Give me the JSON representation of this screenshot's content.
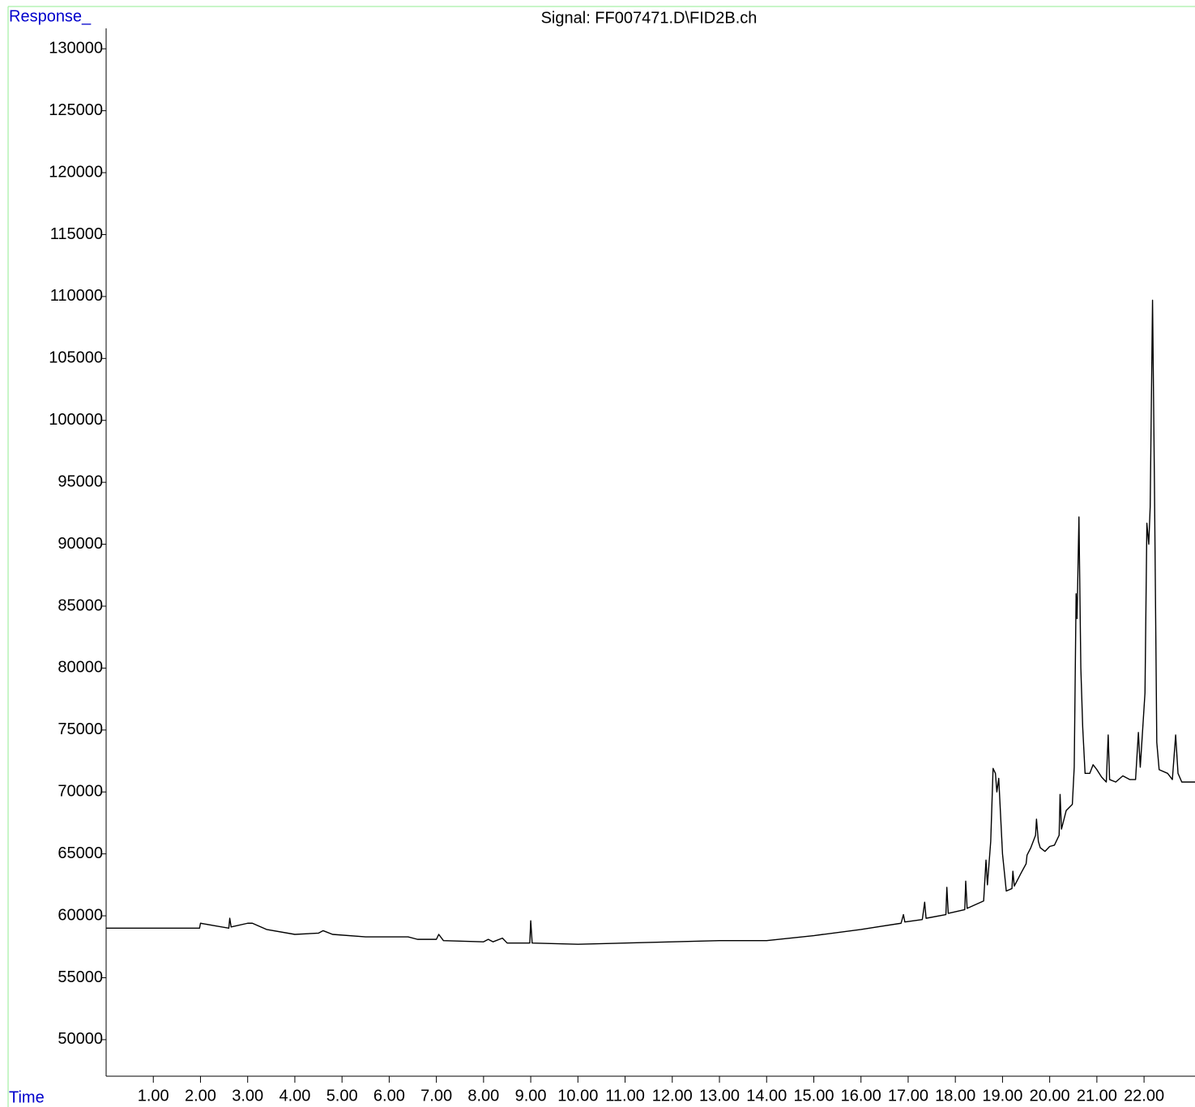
{
  "chart_data": {
    "type": "line",
    "title": "Signal: FF007471.D\\FID2B.ch",
    "y_label": "Response_",
    "x_label": "Time",
    "color": "#000000",
    "xlim": [
      0,
      23.08
    ],
    "ylim": [
      47050,
      131650
    ],
    "xticks": [
      {
        "value": 1,
        "label": "1.00"
      },
      {
        "value": 2,
        "label": "2.00"
      },
      {
        "value": 3,
        "label": "3.00"
      },
      {
        "value": 4,
        "label": "4.00"
      },
      {
        "value": 5,
        "label": "5.00"
      },
      {
        "value": 6,
        "label": "6.00"
      },
      {
        "value": 7,
        "label": "7.00"
      },
      {
        "value": 8,
        "label": "8.00"
      },
      {
        "value": 9,
        "label": "9.00"
      },
      {
        "value": 10,
        "label": "10.00"
      },
      {
        "value": 11,
        "label": "11.00"
      },
      {
        "value": 12,
        "label": "12.00"
      },
      {
        "value": 13,
        "label": "13.00"
      },
      {
        "value": 14,
        "label": "14.00"
      },
      {
        "value": 15,
        "label": "15.00"
      },
      {
        "value": 16,
        "label": "16.00"
      },
      {
        "value": 17,
        "label": "17.00"
      },
      {
        "value": 18,
        "label": "18.00"
      },
      {
        "value": 19,
        "label": "19.00"
      },
      {
        "value": 20,
        "label": "20.00"
      },
      {
        "value": 21,
        "label": "21.00"
      },
      {
        "value": 22,
        "label": "22.00"
      }
    ],
    "yticks": [
      50000,
      55000,
      60000,
      65000,
      70000,
      75000,
      80000,
      85000,
      90000,
      95000,
      100000,
      105000,
      110000,
      115000,
      120000,
      125000,
      130000
    ],
    "x": [
      0,
      1.98,
      2.0,
      2.3,
      2.6,
      2.62,
      2.65,
      3.0,
      3.1,
      3.4,
      4.0,
      4.5,
      4.6,
      4.8,
      5.5,
      6.0,
      6.4,
      6.6,
      7.0,
      7.05,
      7.15,
      8.0,
      8.1,
      8.2,
      8.4,
      8.5,
      8.98,
      9.0,
      9.03,
      10.0,
      11.0,
      12.0,
      13.0,
      14.0,
      15.0,
      16.0,
      16.85,
      16.9,
      16.93,
      17.3,
      17.35,
      17.38,
      17.8,
      17.82,
      17.85,
      18.2,
      18.22,
      18.25,
      18.6,
      18.65,
      18.68,
      18.75,
      18.8,
      18.85,
      18.88,
      18.92,
      19.0,
      19.08,
      19.2,
      19.22,
      19.25,
      19.4,
      19.5,
      19.52,
      19.6,
      19.7,
      19.72,
      19.76,
      19.8,
      19.9,
      20.0,
      20.1,
      20.2,
      20.22,
      20.25,
      20.35,
      20.48,
      20.52,
      20.56,
      20.58,
      20.62,
      20.66,
      20.7,
      20.75,
      20.85,
      20.92,
      21.0,
      21.1,
      21.2,
      21.24,
      21.27,
      21.4,
      21.55,
      21.7,
      21.82,
      21.88,
      21.92,
      22.02,
      22.06,
      22.1,
      22.13,
      22.18,
      22.22,
      22.27,
      22.32,
      22.5,
      22.6,
      22.67,
      22.72,
      22.8,
      23.08
    ],
    "values": [
      59000,
      59000,
      59400,
      59200,
      59000,
      59800,
      59100,
      59400,
      59400,
      58900,
      58500,
      58600,
      58800,
      58500,
      58300,
      58300,
      58300,
      58100,
      58100,
      58500,
      58000,
      57900,
      58100,
      57900,
      58200,
      57800,
      57800,
      59600,
      57800,
      57700,
      57800,
      57900,
      58000,
      58000,
      58400,
      58900,
      59400,
      60100,
      59500,
      59700,
      61100,
      59800,
      60100,
      62300,
      60200,
      60500,
      62800,
      60600,
      61200,
      64500,
      62500,
      66000,
      71900,
      71500,
      70000,
      71100,
      65000,
      62000,
      62200,
      63600,
      62400,
      63500,
      64200,
      64900,
      65500,
      66500,
      67800,
      66000,
      65500,
      65200,
      65600,
      65700,
      66500,
      69800,
      67000,
      68500,
      69000,
      72000,
      86000,
      84000,
      92200,
      80000,
      75200,
      71500,
      71500,
      72200,
      71800,
      71200,
      70800,
      74600,
      71000,
      70800,
      71300,
      71000,
      71000,
      74800,
      72000,
      78000,
      91700,
      90000,
      93000,
      109700,
      95000,
      74000,
      71800,
      71500,
      71000,
      74600,
      71500,
      70800,
      70800
    ]
  }
}
